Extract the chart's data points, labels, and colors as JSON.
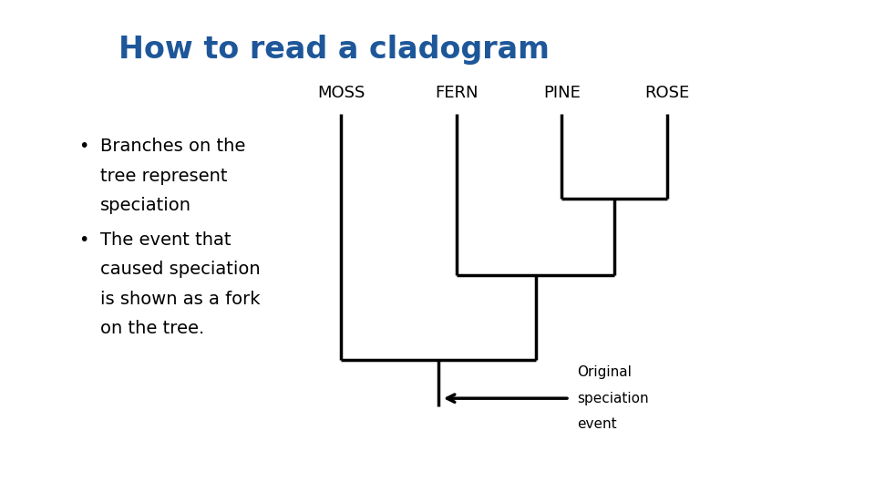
{
  "title": "How to read a cladogram",
  "title_color": "#1e5799",
  "title_fontsize": 24,
  "background_color": "#ffffff",
  "bullet1_line1": "Branches on the",
  "bullet1_line2": "tree represent",
  "bullet1_line3": "speciation",
  "bullet2_line1": "The event that",
  "bullet2_line2": "caused speciation",
  "bullet2_line3": "is shown as a fork",
  "bullet2_line4": "on the tree.",
  "leaf_labels": [
    "MOSS",
    "FERN",
    "PINE",
    "ROSE"
  ],
  "annotation_text_line1": "Original",
  "annotation_text_line2": "speciation",
  "annotation_text_line3": "event",
  "line_width": 2.5,
  "leaf_fontsize": 13,
  "annotation_fontsize": 11,
  "bullet_fontsize": 14
}
